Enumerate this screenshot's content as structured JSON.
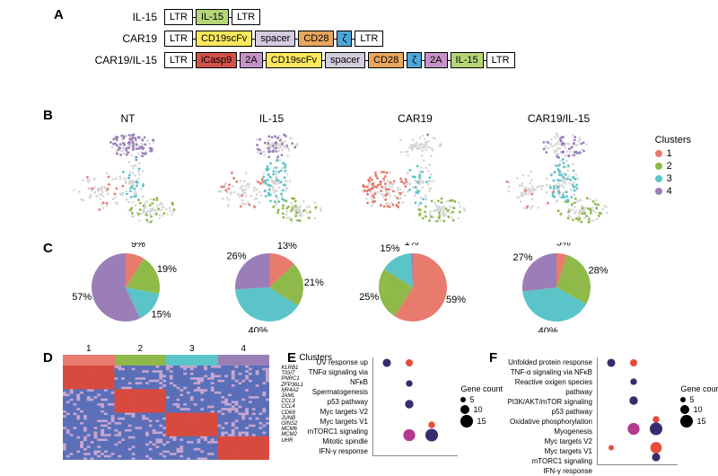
{
  "labels": {
    "A": "A",
    "B": "B",
    "C": "C",
    "D": "D",
    "E": "E",
    "F": "F"
  },
  "panelA": {
    "constructs": [
      {
        "name": "IL-15",
        "boxes": [
          {
            "text": "LTR",
            "bg": "#ffffff"
          },
          {
            "text": "IL-15",
            "bg": "#b4d676"
          },
          {
            "text": "LTR",
            "bg": "#ffffff"
          }
        ]
      },
      {
        "name": "CAR19",
        "boxes": [
          {
            "text": "LTR",
            "bg": "#ffffff"
          },
          {
            "text": "CD19scFv",
            "bg": "#fbe85e"
          },
          {
            "text": "spacer",
            "bg": "#d4cde0"
          },
          {
            "text": "CD28",
            "bg": "#e8a65e"
          },
          {
            "text": "ζ",
            "bg": "#4fa6db"
          },
          {
            "text": "LTR",
            "bg": "#ffffff"
          }
        ]
      },
      {
        "name": "CAR19/IL-15",
        "boxes": [
          {
            "text": "LTR",
            "bg": "#ffffff"
          },
          {
            "text": "iCasp9",
            "bg": "#d1524a"
          },
          {
            "text": "2A",
            "bg": "#c693c7"
          },
          {
            "text": "CD19scFv",
            "bg": "#fbe85e"
          },
          {
            "text": "spacer",
            "bg": "#d4cde0"
          },
          {
            "text": "CD28",
            "bg": "#e8a65e"
          },
          {
            "text": "ζ",
            "bg": "#4fa6db"
          },
          {
            "text": "2A",
            "bg": "#c693c7"
          },
          {
            "text": "IL-15",
            "bg": "#b4d676"
          },
          {
            "text": "LTR",
            "bg": "#ffffff"
          }
        ]
      }
    ]
  },
  "clusters": {
    "title": "Clusters",
    "items": [
      {
        "id": "1",
        "color": "#e87a6e"
      },
      {
        "id": "2",
        "color": "#8fb948"
      },
      {
        "id": "3",
        "color": "#5bc4c9"
      },
      {
        "id": "4",
        "color": "#9b7eb8"
      }
    ],
    "gray": "#d6d6d6"
  },
  "panelB": {
    "conditions": [
      "NT",
      "IL-15",
      "CAR19",
      "CAR19/IL-15"
    ],
    "densities": {
      "NT": {
        "1": 0.09,
        "2": 0.19,
        "3": 0.15,
        "4": 0.57
      },
      "IL-15": {
        "1": 0.13,
        "2": 0.21,
        "3": 0.4,
        "4": 0.26
      },
      "CAR19": {
        "1": 0.59,
        "2": 0.25,
        "3": 0.15,
        "4": 0.01
      },
      "CAR19/IL-15": {
        "1": 0.05,
        "2": 0.28,
        "3": 0.4,
        "4": 0.27
      }
    }
  },
  "panelC": {
    "pies": [
      {
        "slices": [
          {
            "c": "1",
            "pct": 9
          },
          {
            "c": "2",
            "pct": 19
          },
          {
            "c": "3",
            "pct": 15
          },
          {
            "c": "4",
            "pct": 57
          }
        ]
      },
      {
        "slices": [
          {
            "c": "1",
            "pct": 13
          },
          {
            "c": "2",
            "pct": 21
          },
          {
            "c": "3",
            "pct": 40
          },
          {
            "c": "4",
            "pct": 26
          }
        ]
      },
      {
        "slices": [
          {
            "c": "1",
            "pct": 59
          },
          {
            "c": "2",
            "pct": 25
          },
          {
            "c": "3",
            "pct": 15
          },
          {
            "c": "4",
            "pct": 1
          }
        ]
      },
      {
        "slices": [
          {
            "c": "1",
            "pct": 5
          },
          {
            "c": "2",
            "pct": 28
          },
          {
            "c": "3",
            "pct": 40
          },
          {
            "c": "4",
            "pct": 27
          }
        ]
      }
    ]
  },
  "panelD": {
    "header_nums": [
      "1",
      "2",
      "3",
      "4"
    ],
    "clusters_label": "Clusters",
    "genes": [
      "KLRB1",
      "TIGIT",
      "PNRC1",
      "ZFP36L1",
      "NR4A2",
      "JAML",
      "CCL3",
      "CCL4",
      "CD69",
      "JUNB",
      "GINS2",
      "MCM6",
      "MCM2",
      "UHR"
    ],
    "colors": {
      "high": "#d84a3e",
      "mid": "#c5a5d0",
      "low": "#5a6fb8"
    }
  },
  "panelE": {
    "pathways": [
      "UV response up",
      "TNFα signaling via NFκB",
      "Spermatogenesis",
      "p53 pathway",
      "Myc targets V2",
      "Myc targets V1",
      "mTORC1 signaling",
      "Mitotic spindle",
      "IFN-γ response"
    ],
    "legend_title": "Gene count",
    "legend_sizes": [
      {
        "label": "5",
        "r": 3
      },
      {
        "label": "10",
        "r": 5
      },
      {
        "label": "15",
        "r": 7
      }
    ],
    "dot_colors": {
      "low": "#3a2a6e",
      "mid": "#b13c8e",
      "high": "#e84c3a"
    }
  },
  "panelF": {
    "pathways": [
      "Unfolded protein response",
      "TNF-α signaling via NFκB",
      "Reactive oxigen species pathway",
      "PI3K/AKT/mTOR signaling",
      "p53 pathway",
      "Oxidative phosphorylation",
      "Myogenesis",
      "Myc targets V2",
      "Myc targets V1",
      "mTORC1 signaling",
      "IFN-γ response"
    ],
    "legend_title": "Gene count",
    "legend_sizes": [
      {
        "label": "5",
        "r": 3
      },
      {
        "label": "10",
        "r": 5
      },
      {
        "label": "15",
        "r": 7
      }
    ],
    "dot_colors": {
      "low": "#3a2a6e",
      "mid": "#b13c8e",
      "high": "#e84c3a"
    }
  }
}
